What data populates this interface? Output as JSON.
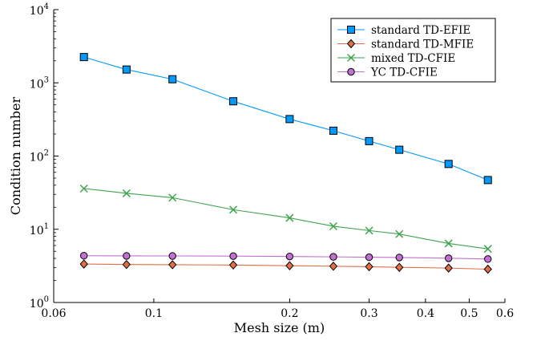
{
  "chart_data": {
    "type": "line",
    "xlabel": "Mesh size (m)",
    "ylabel": "Condition number",
    "xscale": "log",
    "yscale": "log",
    "xlim": [
      0.06,
      0.6
    ],
    "ylim": [
      1,
      10000
    ],
    "x_ticks": [
      0.06,
      0.1,
      0.2,
      0.3,
      0.4,
      0.5,
      0.6
    ],
    "x_tick_labels": [
      "0.06",
      "0.1",
      "0.2",
      "0.3",
      "0.4",
      "0.5",
      "0.6"
    ],
    "y_ticks": [
      1,
      10,
      100,
      1000,
      10000
    ],
    "y_tick_labels": [
      {
        "base": "10",
        "exp": "0"
      },
      {
        "base": "10",
        "exp": "1"
      },
      {
        "base": "10",
        "exp": "2"
      },
      {
        "base": "10",
        "exp": "3"
      },
      {
        "base": "10",
        "exp": "4"
      }
    ],
    "grid": false,
    "legend_position": "top-right",
    "x": [
      0.07,
      0.087,
      0.11,
      0.15,
      0.2,
      0.25,
      0.3,
      0.35,
      0.45,
      0.55
    ],
    "series": [
      {
        "name": "standard TD-EFIE",
        "color": "#009AFA",
        "marker": "square",
        "values": [
          2250,
          1520,
          1120,
          560,
          320,
          222,
          160,
          122,
          78,
          47
        ]
      },
      {
        "name": "standard TD-MFIE",
        "color": "#E26F46",
        "marker": "diamond",
        "values": [
          3.35,
          3.3,
          3.28,
          3.25,
          3.18,
          3.13,
          3.08,
          3.02,
          2.95,
          2.85
        ]
      },
      {
        "name": "mixed TD-CFIE",
        "color": "#3EA44E",
        "marker": "cross",
        "values": [
          36,
          31,
          27,
          18.5,
          14.3,
          11,
          9.6,
          8.6,
          6.4,
          5.4
        ]
      },
      {
        "name": "YC TD-CFIE",
        "color": "#C271D2",
        "marker": "circle",
        "values": [
          4.35,
          4.33,
          4.32,
          4.3,
          4.25,
          4.2,
          4.15,
          4.12,
          4.02,
          3.92
        ]
      }
    ]
  }
}
